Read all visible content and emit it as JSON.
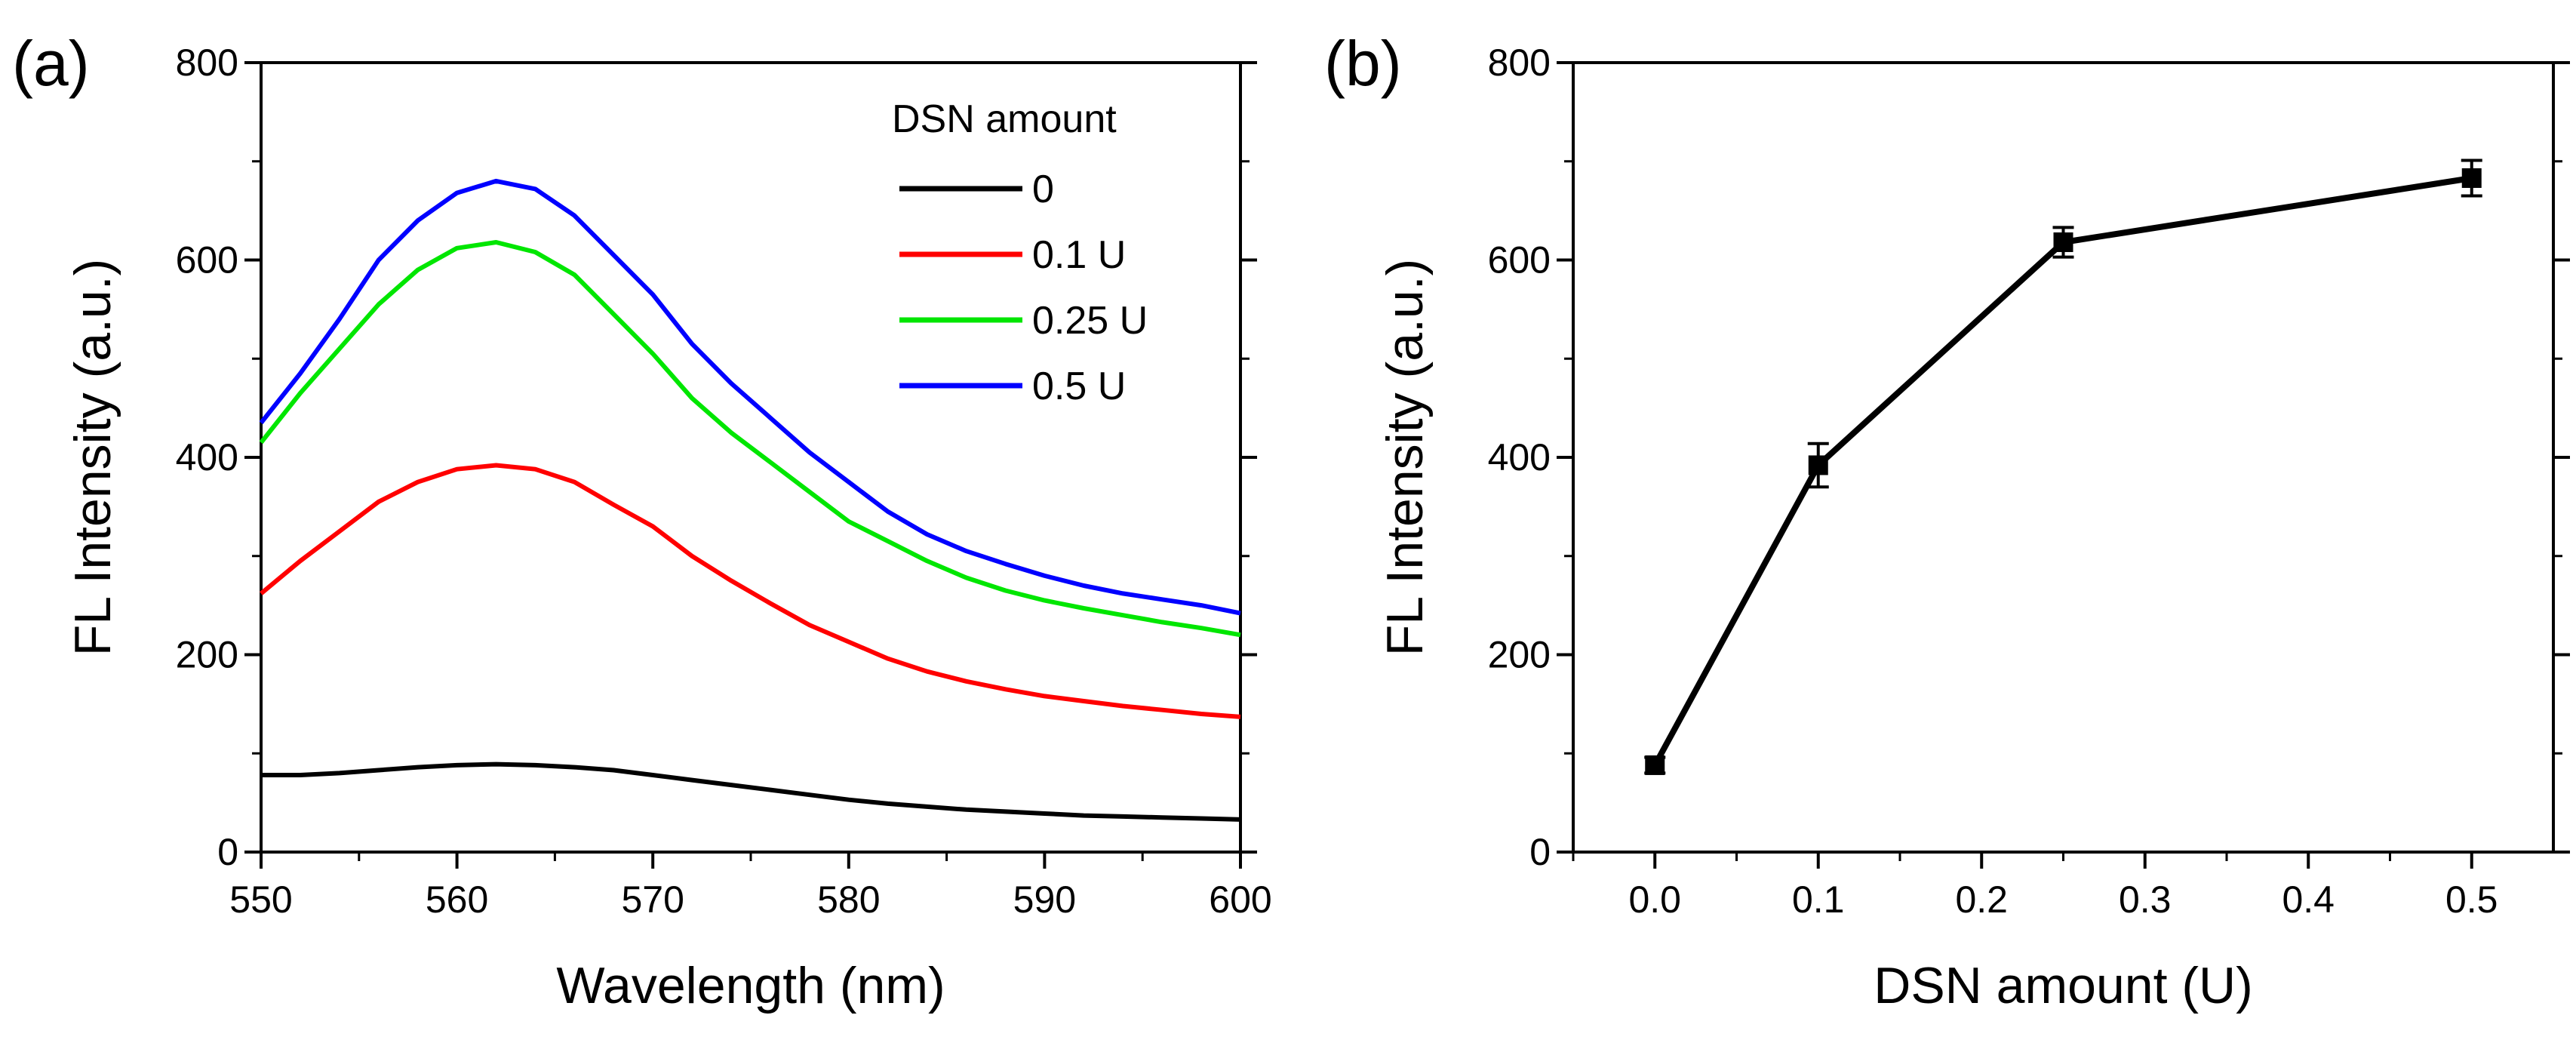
{
  "chart_data": [
    {
      "type": "line",
      "panel_label": "(a)",
      "xlabel": "Wavelength (nm)",
      "ylabel": "FL Intensity (a.u.)",
      "xlim": [
        550,
        600
      ],
      "ylim": [
        0,
        800
      ],
      "xticks": [
        550,
        560,
        570,
        580,
        590,
        600
      ],
      "yticks": [
        0,
        200,
        400,
        600,
        800
      ],
      "legend_title": "DSN amount",
      "legend_position": "top-right",
      "x": [
        550,
        552,
        554,
        556,
        558,
        560,
        562,
        564,
        566,
        568,
        570,
        572,
        574,
        576,
        578,
        580,
        582,
        584,
        586,
        588,
        590,
        592,
        594,
        596,
        598,
        600
      ],
      "series": [
        {
          "name": "0",
          "color": "#000000",
          "values": [
            78,
            78,
            80,
            83,
            86,
            88,
            89,
            88,
            86,
            83,
            78,
            73,
            68,
            63,
            58,
            53,
            49,
            46,
            43,
            41,
            39,
            37,
            36,
            35,
            34,
            33
          ]
        },
        {
          "name": "0.1 U",
          "color": "#ff0000",
          "values": [
            262,
            295,
            325,
            355,
            375,
            388,
            392,
            388,
            375,
            352,
            330,
            300,
            275,
            252,
            230,
            213,
            196,
            183,
            173,
            165,
            158,
            153,
            148,
            144,
            140,
            137
          ]
        },
        {
          "name": "0.25 U",
          "color": "#00e600",
          "values": [
            415,
            465,
            510,
            555,
            590,
            612,
            618,
            608,
            585,
            545,
            505,
            460,
            425,
            395,
            365,
            335,
            315,
            295,
            278,
            265,
            255,
            247,
            240,
            233,
            227,
            220
          ]
        },
        {
          "name": "0.5 U",
          "color": "#0000ff",
          "values": [
            435,
            485,
            540,
            600,
            640,
            668,
            680,
            672,
            645,
            605,
            565,
            515,
            475,
            440,
            405,
            375,
            345,
            322,
            305,
            292,
            280,
            270,
            262,
            256,
            250,
            242
          ]
        }
      ]
    },
    {
      "type": "line",
      "panel_label": "(b)",
      "xlabel": "DSN amount (U)",
      "ylabel": "FL Intensity (a.u.)",
      "xlim": [
        -0.05,
        0.55
      ],
      "ylim": [
        0,
        800
      ],
      "xticks": [
        "0.0",
        "0.1",
        "0.2",
        "0.3",
        "0.4",
        "0.5"
      ],
      "yticks": [
        0,
        200,
        400,
        600,
        800
      ],
      "series": [
        {
          "name": "FL Intensity",
          "color": "#000000",
          "x": [
            0,
            0.1,
            0.25,
            0.5
          ],
          "values": [
            88,
            392,
            618,
            683
          ],
          "error": [
            8,
            22,
            15,
            18
          ]
        }
      ]
    }
  ]
}
